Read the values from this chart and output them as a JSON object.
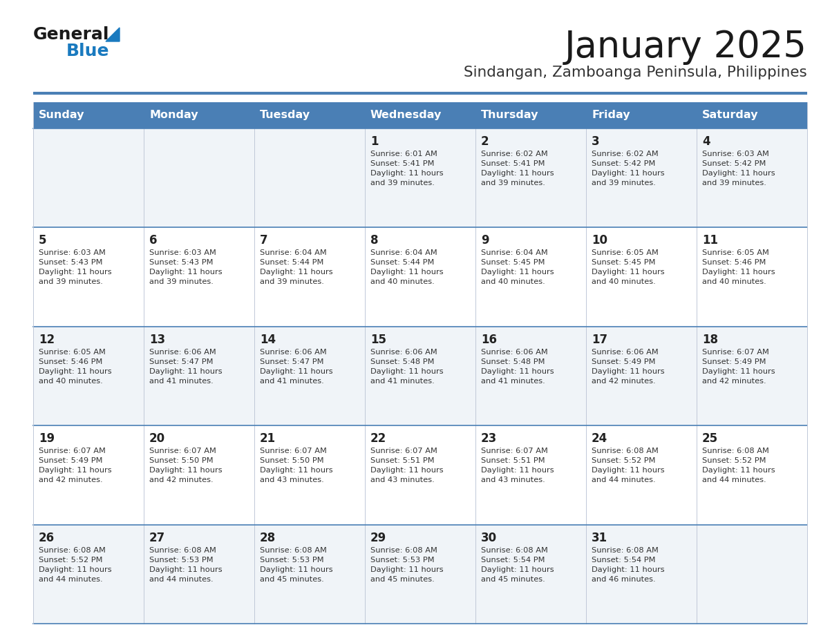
{
  "title": "January 2025",
  "subtitle": "Sindangan, Zamboanga Peninsula, Philippines",
  "header_bg_color": "#4a7fb5",
  "header_text_color": "#ffffff",
  "days_of_week": [
    "Sunday",
    "Monday",
    "Tuesday",
    "Wednesday",
    "Thursday",
    "Friday",
    "Saturday"
  ],
  "row_bg_even": "#f0f4f8",
  "row_bg_odd": "#ffffff",
  "cell_border_color": "#4a7fb5",
  "cell_divider_color": "#c0c8d8",
  "day_num_color": "#222222",
  "cell_text_color": "#333333",
  "title_color": "#1a1a1a",
  "subtitle_color": "#333333",
  "logo_general_color": "#1a1a1a",
  "logo_blue_color": "#1a7abf",
  "weeks": [
    [
      {
        "day": null,
        "info": null
      },
      {
        "day": null,
        "info": null
      },
      {
        "day": null,
        "info": null
      },
      {
        "day": 1,
        "info": "Sunrise: 6:01 AM\nSunset: 5:41 PM\nDaylight: 11 hours\nand 39 minutes."
      },
      {
        "day": 2,
        "info": "Sunrise: 6:02 AM\nSunset: 5:41 PM\nDaylight: 11 hours\nand 39 minutes."
      },
      {
        "day": 3,
        "info": "Sunrise: 6:02 AM\nSunset: 5:42 PM\nDaylight: 11 hours\nand 39 minutes."
      },
      {
        "day": 4,
        "info": "Sunrise: 6:03 AM\nSunset: 5:42 PM\nDaylight: 11 hours\nand 39 minutes."
      }
    ],
    [
      {
        "day": 5,
        "info": "Sunrise: 6:03 AM\nSunset: 5:43 PM\nDaylight: 11 hours\nand 39 minutes."
      },
      {
        "day": 6,
        "info": "Sunrise: 6:03 AM\nSunset: 5:43 PM\nDaylight: 11 hours\nand 39 minutes."
      },
      {
        "day": 7,
        "info": "Sunrise: 6:04 AM\nSunset: 5:44 PM\nDaylight: 11 hours\nand 39 minutes."
      },
      {
        "day": 8,
        "info": "Sunrise: 6:04 AM\nSunset: 5:44 PM\nDaylight: 11 hours\nand 40 minutes."
      },
      {
        "day": 9,
        "info": "Sunrise: 6:04 AM\nSunset: 5:45 PM\nDaylight: 11 hours\nand 40 minutes."
      },
      {
        "day": 10,
        "info": "Sunrise: 6:05 AM\nSunset: 5:45 PM\nDaylight: 11 hours\nand 40 minutes."
      },
      {
        "day": 11,
        "info": "Sunrise: 6:05 AM\nSunset: 5:46 PM\nDaylight: 11 hours\nand 40 minutes."
      }
    ],
    [
      {
        "day": 12,
        "info": "Sunrise: 6:05 AM\nSunset: 5:46 PM\nDaylight: 11 hours\nand 40 minutes."
      },
      {
        "day": 13,
        "info": "Sunrise: 6:06 AM\nSunset: 5:47 PM\nDaylight: 11 hours\nand 41 minutes."
      },
      {
        "day": 14,
        "info": "Sunrise: 6:06 AM\nSunset: 5:47 PM\nDaylight: 11 hours\nand 41 minutes."
      },
      {
        "day": 15,
        "info": "Sunrise: 6:06 AM\nSunset: 5:48 PM\nDaylight: 11 hours\nand 41 minutes."
      },
      {
        "day": 16,
        "info": "Sunrise: 6:06 AM\nSunset: 5:48 PM\nDaylight: 11 hours\nand 41 minutes."
      },
      {
        "day": 17,
        "info": "Sunrise: 6:06 AM\nSunset: 5:49 PM\nDaylight: 11 hours\nand 42 minutes."
      },
      {
        "day": 18,
        "info": "Sunrise: 6:07 AM\nSunset: 5:49 PM\nDaylight: 11 hours\nand 42 minutes."
      }
    ],
    [
      {
        "day": 19,
        "info": "Sunrise: 6:07 AM\nSunset: 5:49 PM\nDaylight: 11 hours\nand 42 minutes."
      },
      {
        "day": 20,
        "info": "Sunrise: 6:07 AM\nSunset: 5:50 PM\nDaylight: 11 hours\nand 42 minutes."
      },
      {
        "day": 21,
        "info": "Sunrise: 6:07 AM\nSunset: 5:50 PM\nDaylight: 11 hours\nand 43 minutes."
      },
      {
        "day": 22,
        "info": "Sunrise: 6:07 AM\nSunset: 5:51 PM\nDaylight: 11 hours\nand 43 minutes."
      },
      {
        "day": 23,
        "info": "Sunrise: 6:07 AM\nSunset: 5:51 PM\nDaylight: 11 hours\nand 43 minutes."
      },
      {
        "day": 24,
        "info": "Sunrise: 6:08 AM\nSunset: 5:52 PM\nDaylight: 11 hours\nand 44 minutes."
      },
      {
        "day": 25,
        "info": "Sunrise: 6:08 AM\nSunset: 5:52 PM\nDaylight: 11 hours\nand 44 minutes."
      }
    ],
    [
      {
        "day": 26,
        "info": "Sunrise: 6:08 AM\nSunset: 5:52 PM\nDaylight: 11 hours\nand 44 minutes."
      },
      {
        "day": 27,
        "info": "Sunrise: 6:08 AM\nSunset: 5:53 PM\nDaylight: 11 hours\nand 44 minutes."
      },
      {
        "day": 28,
        "info": "Sunrise: 6:08 AM\nSunset: 5:53 PM\nDaylight: 11 hours\nand 45 minutes."
      },
      {
        "day": 29,
        "info": "Sunrise: 6:08 AM\nSunset: 5:53 PM\nDaylight: 11 hours\nand 45 minutes."
      },
      {
        "day": 30,
        "info": "Sunrise: 6:08 AM\nSunset: 5:54 PM\nDaylight: 11 hours\nand 45 minutes."
      },
      {
        "day": 31,
        "info": "Sunrise: 6:08 AM\nSunset: 5:54 PM\nDaylight: 11 hours\nand 46 minutes."
      },
      {
        "day": null,
        "info": null
      }
    ]
  ],
  "figwidth": 11.88,
  "figheight": 9.18,
  "dpi": 100
}
